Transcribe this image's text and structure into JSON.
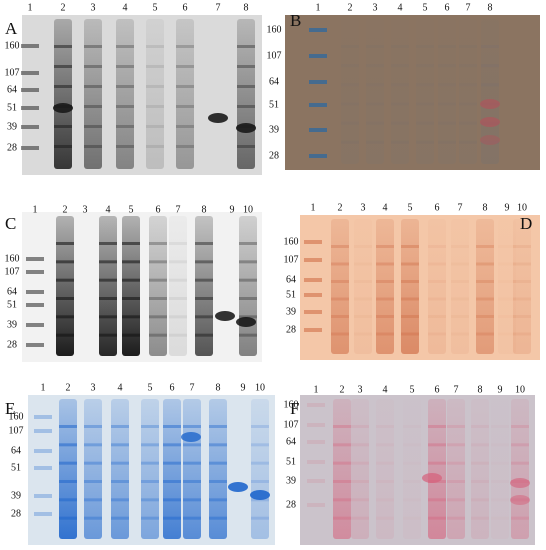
{
  "panels": [
    {
      "letter": "A",
      "lanes": [
        "1",
        "2",
        "3",
        "4",
        "5",
        "6",
        "7",
        "8"
      ],
      "markers": [
        160,
        107,
        64,
        51,
        39,
        28
      ]
    },
    {
      "letter": "B",
      "lanes": [
        "1",
        "2",
        "3",
        "4",
        "5",
        "6",
        "7",
        "8"
      ],
      "markers": [
        160,
        107,
        64,
        51,
        39,
        28
      ]
    },
    {
      "letter": "C",
      "lanes": [
        "1",
        "2",
        "3",
        "4",
        "5",
        "6",
        "7",
        "8",
        "9",
        "10"
      ],
      "markers": [
        160,
        107,
        64,
        51,
        39,
        28
      ]
    },
    {
      "letter": "D",
      "lanes": [
        "1",
        "2",
        "3",
        "4",
        "5",
        "6",
        "7",
        "8",
        "9",
        "10"
      ],
      "markers": [
        160,
        107,
        64,
        51,
        39,
        28
      ]
    },
    {
      "letter": "E",
      "lanes": [
        "1",
        "2",
        "3",
        "4",
        "5",
        "6",
        "7",
        "8",
        "9",
        "10"
      ],
      "markers": [
        160,
        107,
        64,
        51,
        39,
        28
      ]
    },
    {
      "letter": "F",
      "lanes": [
        "1",
        "2",
        "3",
        "4",
        "5",
        "6",
        "7",
        "8",
        "9",
        "10"
      ],
      "markers": [
        160,
        107,
        64,
        51,
        39,
        28
      ]
    }
  ]
}
